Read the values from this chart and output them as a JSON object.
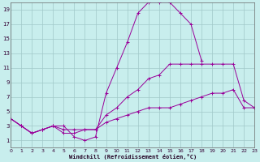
{
  "xlabel": "Windchill (Refroidissement éolien,°C)",
  "bg_color": "#c8eeed",
  "grid_color": "#a0c8c8",
  "line_color": "#990099",
  "xlim": [
    0,
    23
  ],
  "ylim": [
    0,
    20
  ],
  "xticks": [
    0,
    1,
    2,
    3,
    4,
    5,
    6,
    7,
    8,
    9,
    10,
    11,
    12,
    13,
    14,
    15,
    16,
    17,
    18,
    19,
    20,
    21,
    22,
    23
  ],
  "yticks": [
    1,
    3,
    5,
    7,
    9,
    11,
    13,
    15,
    17,
    19
  ],
  "series": [
    {
      "x": [
        0,
        1,
        2,
        3,
        4,
        5,
        6,
        7,
        8,
        9,
        10,
        11,
        12,
        13,
        14,
        15,
        16,
        17,
        18
      ],
      "y": [
        4.0,
        3.0,
        2.0,
        2.5,
        3.0,
        3.0,
        1.5,
        1.0,
        1.5,
        7.5,
        11.0,
        14.5,
        18.5,
        20.0,
        20.0,
        20.0,
        18.5,
        17.0,
        12.0
      ]
    },
    {
      "x": [
        0,
        1,
        2,
        3,
        4,
        5,
        6,
        7,
        8,
        9,
        10,
        11,
        12,
        13,
        14,
        15,
        16,
        17,
        18,
        19,
        20,
        21,
        22,
        23
      ],
      "y": [
        4.0,
        3.0,
        2.0,
        2.5,
        3.0,
        2.5,
        2.5,
        2.5,
        2.5,
        4.5,
        5.5,
        7.0,
        8.0,
        9.5,
        10.0,
        11.5,
        11.5,
        11.5,
        11.5,
        11.5,
        11.5,
        11.5,
        6.5,
        5.5
      ]
    },
    {
      "x": [
        0,
        1,
        2,
        3,
        4,
        5,
        6,
        7,
        8,
        9,
        10,
        11,
        12,
        13,
        14,
        15,
        16,
        17,
        18,
        19,
        20,
        21,
        22,
        23
      ],
      "y": [
        4.0,
        3.0,
        2.0,
        2.5,
        3.0,
        2.0,
        2.0,
        2.5,
        2.5,
        3.5,
        4.0,
        4.5,
        5.0,
        5.5,
        5.5,
        5.5,
        6.0,
        6.5,
        7.0,
        7.5,
        7.5,
        8.0,
        5.5,
        5.5
      ]
    }
  ]
}
